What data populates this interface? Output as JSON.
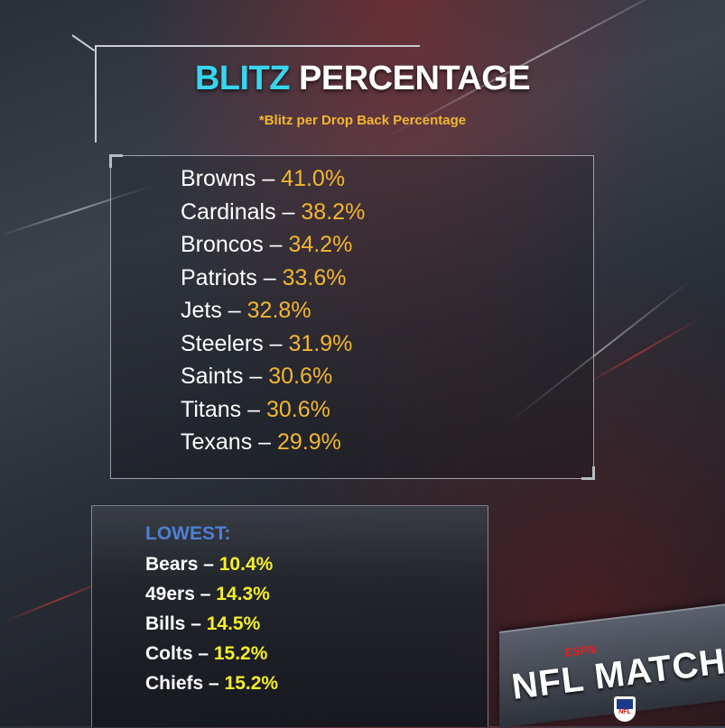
{
  "header": {
    "title_accent": "BLITZ",
    "title_rest": " PERCENTAGE",
    "subtitle": "*Blitz per Drop Back Percentage"
  },
  "top_list": [
    {
      "team": "Browns",
      "value": "41.0%"
    },
    {
      "team": "Cardinals",
      "value": "38.2%"
    },
    {
      "team": "Broncos",
      "value": "34.2%"
    },
    {
      "team": "Patriots",
      "value": "33.6%"
    },
    {
      "team": "Jets",
      "value": "32.8%"
    },
    {
      "team": "Steelers",
      "value": "31.9%"
    },
    {
      "team": "Saints",
      "value": "30.6%"
    },
    {
      "team": "Titans",
      "value": "30.6%"
    },
    {
      "team": "Texans",
      "value": "29.9%"
    }
  ],
  "lowest": {
    "heading": "LOWEST:",
    "items": [
      {
        "team": "Bears",
        "value": "10.4%"
      },
      {
        "team": "49ers",
        "value": "14.3%"
      },
      {
        "team": "Bills",
        "value": "14.5%"
      },
      {
        "team": "Colts",
        "value": "15.2%"
      },
      {
        "team": "Chiefs",
        "value": "15.2%"
      }
    ]
  },
  "separator": " – ",
  "logo": {
    "network": "ESPN",
    "text": "NFL MATCHUP",
    "badge": "NFL"
  },
  "colors": {
    "accent_cyan": "#37d6f0",
    "value_gold": "#f2b632",
    "value_yellow": "#f6ee2a",
    "lowest_blue": "#4f7fd6"
  }
}
